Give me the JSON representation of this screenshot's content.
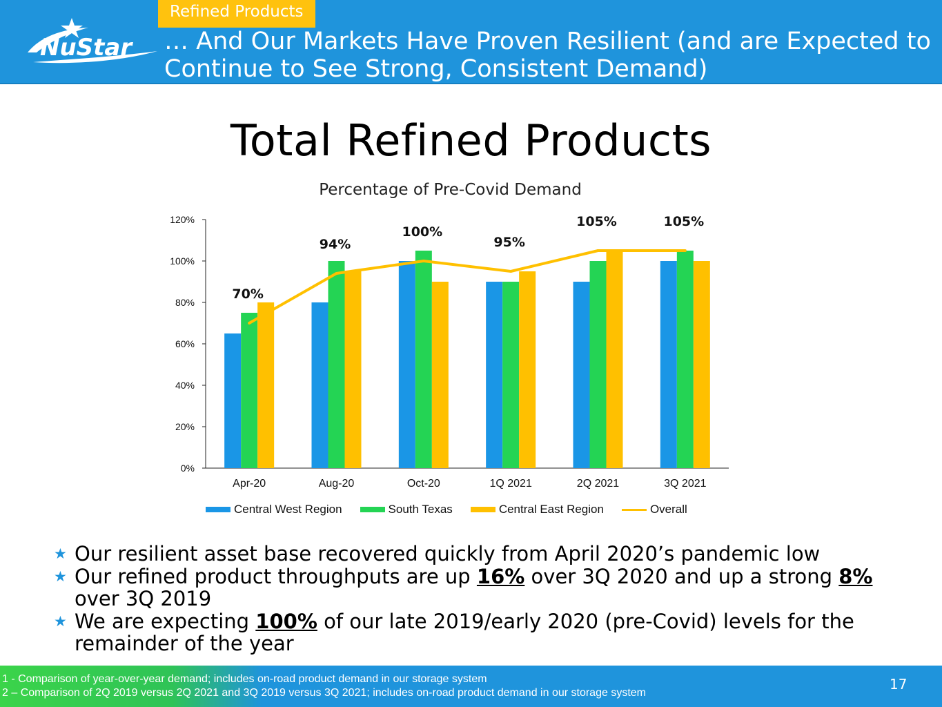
{
  "header": {
    "section_tag": "Refined Products",
    "title": "… And Our Markets Have Proven Resilient (and are Expected to Continue to See Strong, Consistent Demand)",
    "logo_text": "NuStar"
  },
  "chart_title": "Total Refined Products",
  "chart_subtitle": "Percentage of Pre-Covid Demand",
  "chart_data": {
    "type": "bar",
    "title": "Total Refined Products",
    "subtitle": "Percentage of Pre-Covid Demand",
    "categories": [
      "Apr-20",
      "Aug-20",
      "Oct-20",
      "1Q 2021",
      "2Q 2021",
      "3Q 2021"
    ],
    "series": [
      {
        "name": "Central West Region",
        "type": "bar",
        "color": "#1a96e6",
        "values": [
          65,
          80,
          100,
          90,
          90,
          100
        ]
      },
      {
        "name": "South Texas",
        "type": "bar",
        "color": "#24d454",
        "values": [
          75,
          100,
          105,
          90,
          100,
          105
        ]
      },
      {
        "name": "Central East Region",
        "type": "bar",
        "color": "#ffc000",
        "values": [
          80,
          95,
          90,
          95,
          105,
          100
        ]
      },
      {
        "name": "Overall",
        "type": "line",
        "color": "#ffc000",
        "values": [
          70,
          94,
          100,
          95,
          105,
          105
        ]
      }
    ],
    "data_labels": [
      "70%",
      "94%",
      "100%",
      "95%",
      "105%",
      "105%"
    ],
    "y_ticks": [
      "0%",
      "20%",
      "40%",
      "60%",
      "80%",
      "100%",
      "120%"
    ],
    "ylim": [
      0,
      120
    ],
    "y_unit": "%",
    "grid": false,
    "legend_position": "bottom"
  },
  "bullets": [
    {
      "parts": [
        {
          "text": "Our resilient asset base recovered quickly from April 2020’s pandemic low",
          "bold": false
        }
      ]
    },
    {
      "parts": [
        {
          "text": "Our refined product throughputs are up ",
          "bold": false
        },
        {
          "text": "16%",
          "bold": true
        },
        {
          "text": " over 3Q 2020 and up a strong ",
          "bold": false
        },
        {
          "text": "8%",
          "bold": true
        },
        {
          "text": " over 3Q 2019",
          "bold": false
        }
      ]
    },
    {
      "parts": [
        {
          "text": "We are expecting ",
          "bold": false
        },
        {
          "text": "100%",
          "bold": true
        },
        {
          "text": " of our late 2019/early 2020 (pre-Covid) levels for the remainder of the year",
          "bold": false
        }
      ]
    }
  ],
  "footer": {
    "footnote_1": "1 - Comparison of year-over-year demand; includes on-road product demand in our storage system",
    "footnote_2": "2 – Comparison of 2Q 2019 versus 2Q 2021 and 3Q 2019 versus 3Q 2021; includes on-road product demand in our storage system",
    "page_number": "17"
  },
  "colors": {
    "header_blue": "#1f94dc",
    "tag_yellow": "#ffc20e",
    "footer_green": "#3bd44a"
  }
}
